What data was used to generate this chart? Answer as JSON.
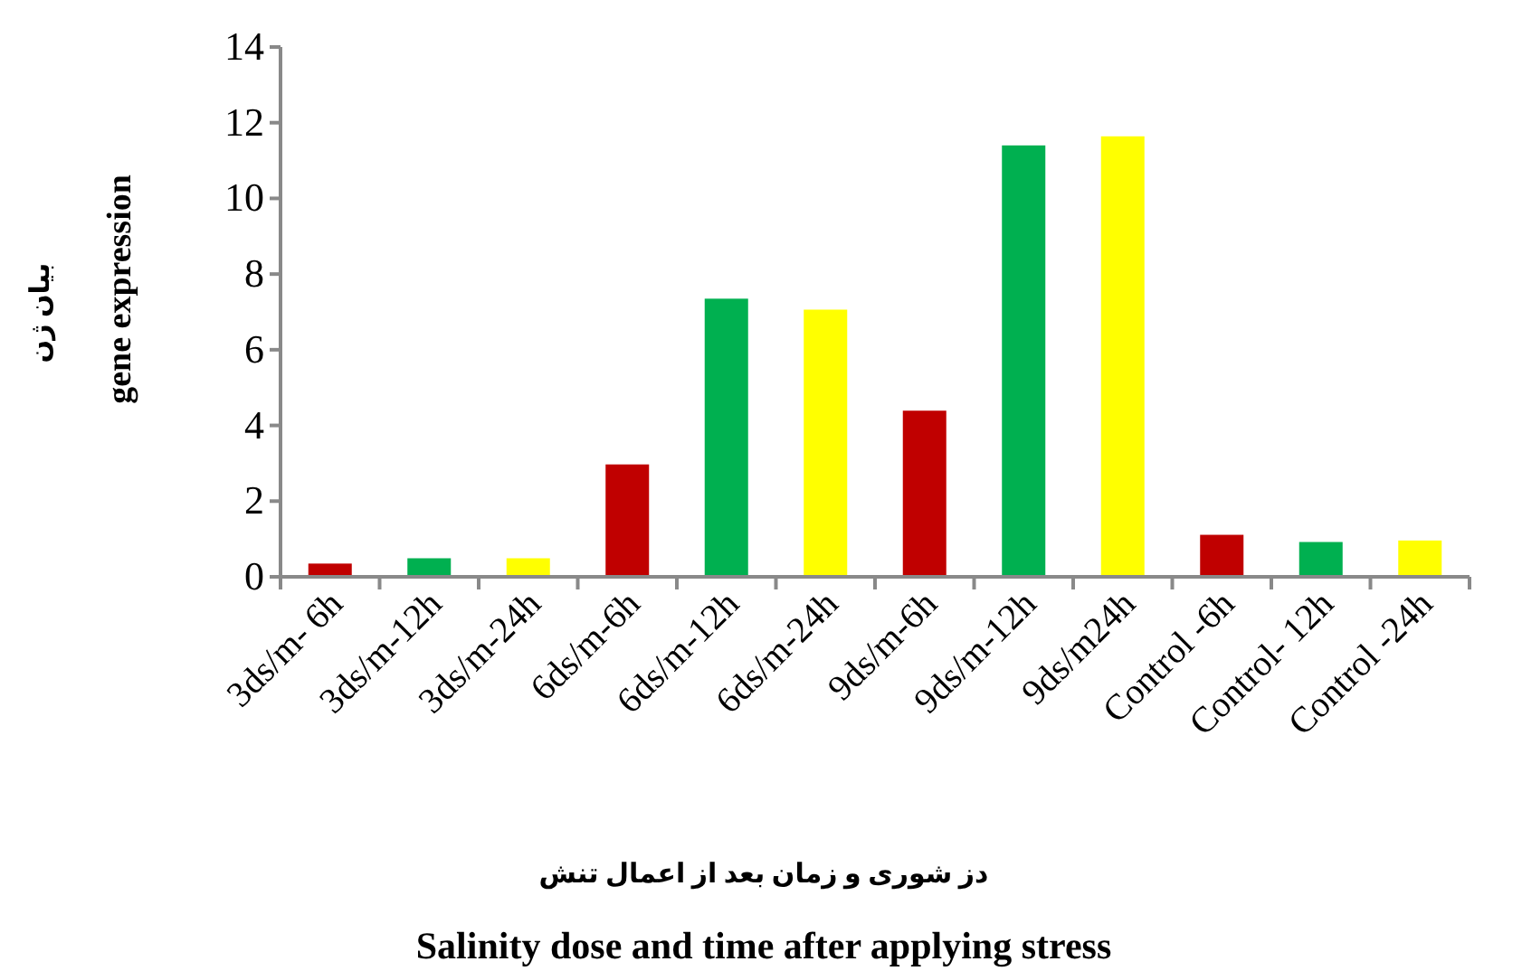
{
  "chart_data": {
    "type": "bar",
    "categories": [
      "3ds/m- 6h",
      "3ds/m-12h",
      "3ds/m-24h",
      "6ds/m-6h",
      "6ds/m-12h",
      "6ds/m-24h",
      "9ds/m-6h",
      "9ds/m-12h",
      "9ds/m24h",
      "Control -6h",
      "Control- 12h",
      "Control -24h"
    ],
    "values": [
      0.35,
      0.49,
      0.49,
      2.97,
      7.35,
      7.06,
      4.39,
      11.4,
      11.64,
      1.11,
      0.92,
      0.96
    ],
    "colors": [
      "#c00000",
      "#00b050",
      "#ffff00",
      "#c00000",
      "#00b050",
      "#ffff00",
      "#c00000",
      "#00b050",
      "#ffff00",
      "#c00000",
      "#00b050",
      "#ffff00"
    ],
    "ylim": [
      0,
      14
    ],
    "yticks": [
      0,
      2,
      4,
      6,
      8,
      10,
      12,
      14
    ],
    "xlabel": "Salinity dose and time after applying stress",
    "ylabel": "gene expression",
    "annotations": [
      "بیان ژن",
      "دز شوری و زمان بعد از اعمال تنش"
    ]
  }
}
